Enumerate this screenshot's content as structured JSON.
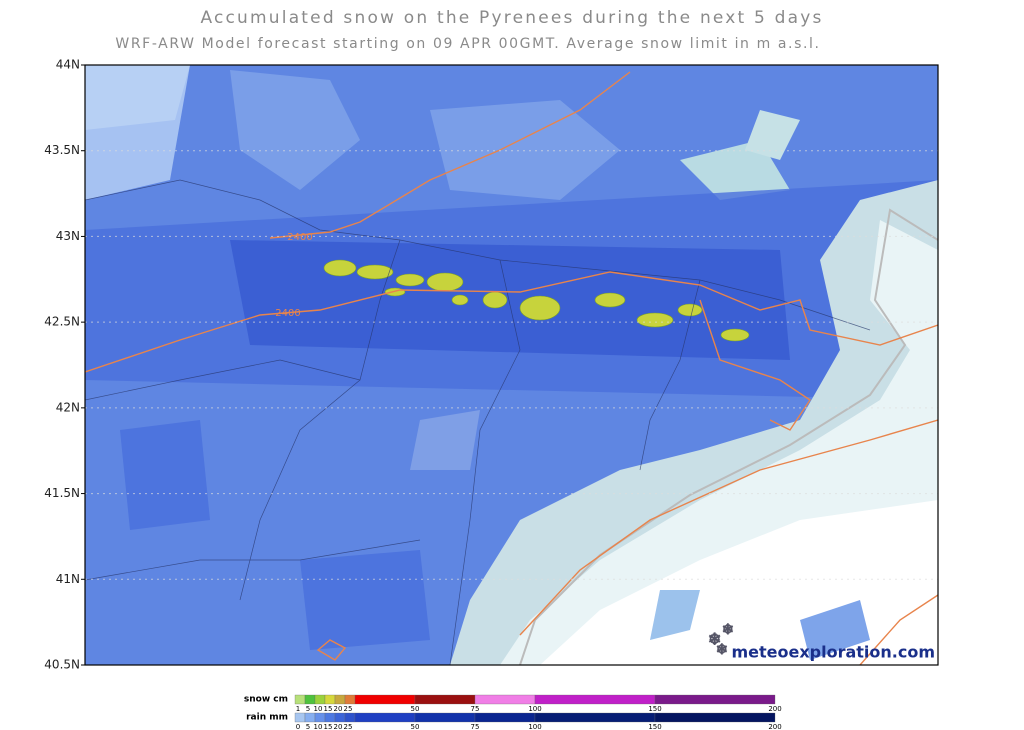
{
  "title": "Accumulated snow on the Pyrenees during the next 5 days",
  "subtitle": "WRF-ARW Model forecast starting on 09 APR 00GMT.  Average snow limit in m a.s.l.",
  "map": {
    "lat_labels": [
      "44N",
      "43.5N",
      "43N",
      "42.5N",
      "42N",
      "41.5N",
      "41N",
      "40.5N"
    ],
    "contour_labels": [
      "2400",
      "2400"
    ],
    "watermark": "meteoexploration.com"
  },
  "legend": {
    "snow": {
      "label": "snow cm",
      "ticks": [
        "1",
        "5",
        "10",
        "15",
        "20",
        "25",
        "50",
        "75",
        "100",
        "150",
        "200"
      ]
    },
    "rain": {
      "label": "rain mm",
      "ticks": [
        "0",
        "5",
        "10",
        "15",
        "20",
        "25",
        "50",
        "75",
        "100",
        "150",
        "200"
      ]
    }
  }
}
